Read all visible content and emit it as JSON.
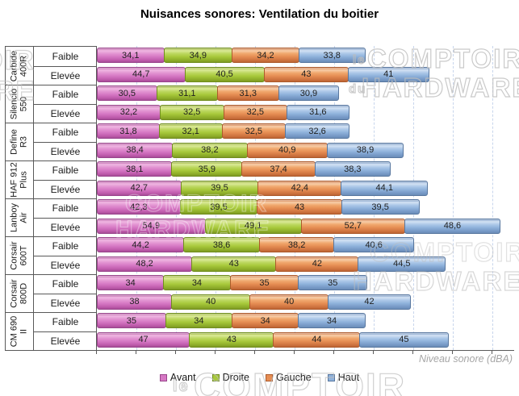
{
  "title": "Nuisances sonores: Ventilation du boitier",
  "axis_label": "Niveau sonore (dBA)",
  "legend": {
    "position": "bottom",
    "items": [
      {
        "label": "Avant",
        "color": "#d678c4",
        "border": "#99458c"
      },
      {
        "label": "Droite",
        "color": "#a8c93c",
        "border": "#6f8d1d"
      },
      {
        "label": "Gauche",
        "color": "#e68e54",
        "border": "#ac5a2b"
      },
      {
        "label": "Haut",
        "color": "#8fb2db",
        "border": "#58779f"
      }
    ]
  },
  "watermarks": [
    {
      "text": "COMPTOIR"
    },
    {
      "text": "HARDWARE"
    },
    {
      "text": "le"
    },
    {
      "text": "COMPTOIR"
    },
    {
      "text": "du"
    },
    {
      "text": "HARDWARE"
    },
    {
      "text": "COMPTOIR"
    },
    {
      "text": "HARDWARE"
    },
    {
      "text": "COMPTOIR"
    },
    {
      "text": "HARDWARE"
    },
    {
      "text": "le"
    },
    {
      "text": "COMPTOIR"
    }
  ],
  "chart_data": {
    "type": "bar",
    "stacked": true,
    "orientation": "horizontal",
    "title": "Nuisances sonores: Ventilation du boitier",
    "xlabel": "Niveau sonore (dBA)",
    "unit": "dBA",
    "grid": "vertical-dashed",
    "gridline_interval": 20,
    "legend_position": "bottom",
    "series": [
      "Avant",
      "Droite",
      "Gauche",
      "Haut"
    ],
    "series_colors": [
      "#d678c4",
      "#a8c93c",
      "#e68e54",
      "#8fb2db"
    ],
    "levels": [
      "Faible",
      "Elevée"
    ],
    "groups": [
      {
        "case": "Carbide 400R",
        "rows": [
          {
            "level": "Faible",
            "values": [
              34.1,
              34.9,
              34.2,
              33.8
            ]
          },
          {
            "level": "Elevée",
            "values": [
              44.7,
              40.5,
              43,
              41
            ]
          }
        ]
      },
      {
        "case": "Silencio 550",
        "rows": [
          {
            "level": "Faible",
            "values": [
              30.5,
              31.1,
              31.3,
              30.9
            ]
          },
          {
            "level": "Elevée",
            "values": [
              32.2,
              32.5,
              32.5,
              31.6
            ]
          }
        ]
      },
      {
        "case": "Define R3",
        "rows": [
          {
            "level": "Faible",
            "values": [
              31.8,
              32.1,
              32.5,
              32.6
            ]
          },
          {
            "level": "Elevée",
            "values": [
              38.4,
              38.2,
              40.9,
              38.9
            ]
          }
        ]
      },
      {
        "case": "HAF 912 Plus",
        "rows": [
          {
            "level": "Faible",
            "values": [
              38.1,
              35.9,
              37.4,
              38.3
            ]
          },
          {
            "level": "Elevée",
            "values": [
              42.7,
              39.5,
              42.4,
              44.1
            ]
          }
        ]
      },
      {
        "case": "Lanboy Air",
        "rows": [
          {
            "level": "Faible",
            "values": [
              42.3,
              39.5,
              43,
              39.5
            ]
          },
          {
            "level": "Elevée",
            "values": [
              54.9,
              49.1,
              52.7,
              48.6
            ]
          }
        ]
      },
      {
        "case": "Corsair 600T",
        "rows": [
          {
            "level": "Faible",
            "values": [
              44.2,
              38.6,
              38.2,
              40.6
            ]
          },
          {
            "level": "Elevée",
            "values": [
              48.2,
              43,
              42,
              44.5
            ]
          }
        ]
      },
      {
        "case": "Corsair 800D",
        "rows": [
          {
            "level": "Faible",
            "values": [
              34,
              34,
              35,
              35
            ]
          },
          {
            "level": "Elevée",
            "values": [
              38,
              40,
              40,
              42
            ]
          }
        ]
      },
      {
        "case": "CM 690 II",
        "rows": [
          {
            "level": "Faible",
            "values": [
              35,
              34,
              34,
              34
            ]
          },
          {
            "level": "Elevée",
            "values": [
              47,
              43,
              44,
              45
            ]
          }
        ]
      }
    ],
    "value_format": "decimal-comma"
  }
}
